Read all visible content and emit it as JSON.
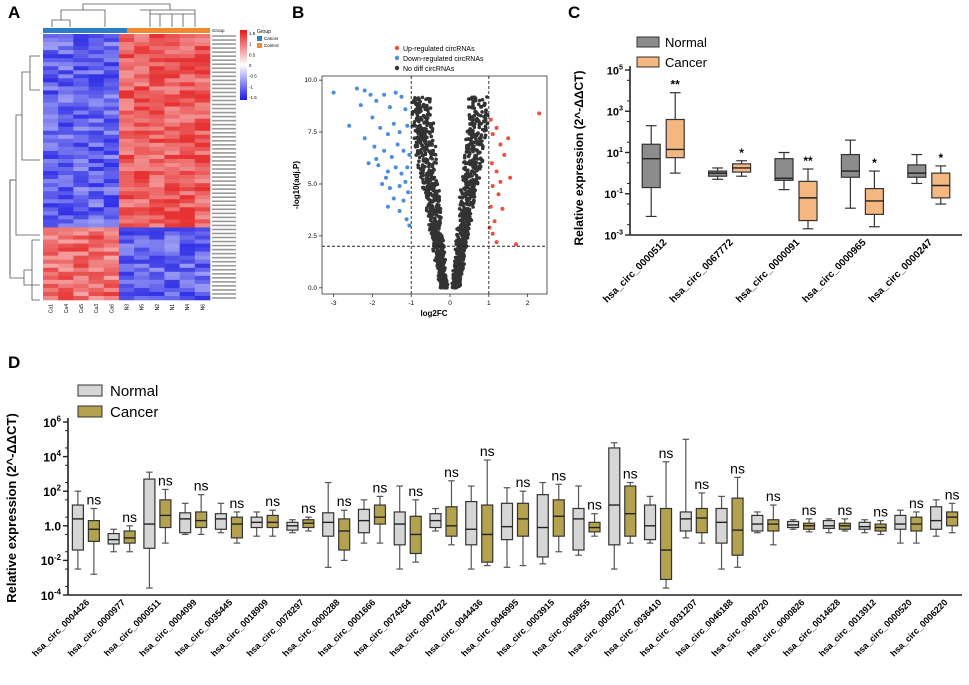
{
  "chart_data": [
    {
      "panel": "A",
      "type": "heatmap",
      "legend": {
        "title": "Group",
        "entries": [
          "Cancer",
          "Control"
        ]
      },
      "color_scale": {
        "ticks": [
          "1.5",
          "1",
          "0.5",
          "0",
          "-0.5",
          "-1",
          "-1.5"
        ],
        "low": "#1a1ae6",
        "mid": "#ffffff",
        "high": "#e61a1a"
      },
      "group_bar_label": "Group",
      "columns": [
        "Ca1",
        "Ca4",
        "Ca5",
        "Ca3",
        "Ca6",
        "N3",
        "N5",
        "N2",
        "N1",
        "N4",
        "N6"
      ],
      "column_groups": [
        "Cancer",
        "Cancer",
        "Cancer",
        "Cancer",
        "Cancer",
        "Control",
        "Control",
        "Control",
        "Control",
        "Control",
        "Control"
      ],
      "rows_top_block": 48,
      "rows_bottom_block": 18
    },
    {
      "panel": "B",
      "type": "scatter",
      "xlabel": "log2FC",
      "ylabel": "-log10(adj.P)",
      "xlim": [
        -3.3,
        2.5
      ],
      "ylim": [
        -0.3,
        10.2
      ],
      "xticks": [
        "-3",
        "-2",
        "-1",
        "0",
        "1",
        "2"
      ],
      "yticks": [
        "0.0",
        "2.5",
        "5.0",
        "7.5",
        "10.0"
      ],
      "thresholds": {
        "x": [
          -1,
          1
        ],
        "y": 2.0
      },
      "legend": [
        "Up-regulated circRNAs",
        "Down-regulated circRNAs",
        "No diff circRNAs"
      ],
      "colors": {
        "up": "#e8543e",
        "down": "#4a8ede",
        "nodiff": "#333333"
      },
      "up_points": [
        [
          1.05,
          8.1
        ],
        [
          1.1,
          7.4
        ],
        [
          1.2,
          7.7
        ],
        [
          1.3,
          6.9
        ],
        [
          1.08,
          6.0
        ],
        [
          1.2,
          5.6
        ],
        [
          1.4,
          6.4
        ],
        [
          1.5,
          7.2
        ],
        [
          1.1,
          4.9
        ],
        [
          1.25,
          4.5
        ],
        [
          1.05,
          3.9
        ],
        [
          1.15,
          3.2
        ],
        [
          1.35,
          3.8
        ],
        [
          1.55,
          5.3
        ],
        [
          1.1,
          2.6
        ],
        [
          1.2,
          2.2
        ],
        [
          2.3,
          8.4
        ],
        [
          1.7,
          2.1
        ],
        [
          1.02,
          2.9
        ],
        [
          1.3,
          5.1
        ]
      ],
      "down_points": [
        [
          -3.0,
          9.4
        ],
        [
          -2.4,
          9.6
        ],
        [
          -2.2,
          9.5
        ],
        [
          -2.05,
          9.3
        ],
        [
          -2.3,
          8.8
        ],
        [
          -1.9,
          9.0
        ],
        [
          -1.7,
          9.3
        ],
        [
          -1.55,
          8.7
        ],
        [
          -1.4,
          9.4
        ],
        [
          -1.25,
          9.2
        ],
        [
          -1.15,
          8.6
        ],
        [
          -2.6,
          7.8
        ],
        [
          -2.0,
          8.2
        ],
        [
          -1.8,
          7.7
        ],
        [
          -1.6,
          7.4
        ],
        [
          -1.45,
          7.9
        ],
        [
          -1.3,
          7.5
        ],
        [
          -1.1,
          7.8
        ],
        [
          -2.2,
          7.2
        ],
        [
          -1.95,
          6.8
        ],
        [
          -1.7,
          6.6
        ],
        [
          -1.5,
          6.3
        ],
        [
          -1.35,
          6.9
        ],
        [
          -1.2,
          6.6
        ],
        [
          -1.05,
          6.4
        ],
        [
          -1.85,
          5.9
        ],
        [
          -1.6,
          5.6
        ],
        [
          -1.4,
          5.8
        ],
        [
          -1.25,
          5.5
        ],
        [
          -1.1,
          5.8
        ],
        [
          -1.75,
          5.0
        ],
        [
          -1.55,
          4.8
        ],
        [
          -1.3,
          4.9
        ],
        [
          -1.15,
          5.1
        ],
        [
          -1.45,
          4.3
        ],
        [
          -1.2,
          4.2
        ],
        [
          -1.08,
          4.6
        ],
        [
          -1.3,
          3.7
        ],
        [
          -1.12,
          3.3
        ],
        [
          -1.05,
          3.0
        ],
        [
          -1.6,
          3.9
        ],
        [
          -1.9,
          6.2
        ],
        [
          -2.1,
          6.0
        ],
        [
          -1.65,
          5.3
        ]
      ]
    },
    {
      "panel": "C",
      "type": "box",
      "ylabel": "Relative expression  (2^-ΔΔCT)",
      "yscale": "log10",
      "ylim_log10": [
        -3,
        5
      ],
      "yticks": [
        {
          "base": "10",
          "exp": "5",
          "v": 5
        },
        {
          "base": "10",
          "exp": "3",
          "v": 3
        },
        {
          "base": "10",
          "exp": "1",
          "v": 1
        },
        {
          "base": "10",
          "exp": "-1",
          "v": -1
        },
        {
          "base": "10",
          "exp": "-3",
          "v": -3
        }
      ],
      "legend": [
        "Normal",
        "Cancer"
      ],
      "colors": {
        "Normal": "#8c8c8c",
        "Cancer": "#f4b77f"
      },
      "categories": [
        "hsa_circ_0000512",
        "hsa_circ_0067772",
        "hsa_circ_0000091",
        "hsa_circ_0000965",
        "hsa_circ_0000247"
      ],
      "significance": [
        "**",
        "*",
        "**",
        "*",
        "*"
      ],
      "series": [
        {
          "name": "Normal",
          "boxes": [
            [
              -2.1,
              -0.7,
              0.7,
              1.4,
              2.3
            ],
            [
              -0.3,
              -0.15,
              0.0,
              0.1,
              0.25
            ],
            [
              -0.8,
              -0.35,
              -0.25,
              0.7,
              1.0
            ],
            [
              -1.7,
              -0.2,
              0.1,
              0.9,
              1.6
            ],
            [
              -0.5,
              -0.2,
              0.0,
              0.4,
              0.9
            ]
          ]
        },
        {
          "name": "Cancer",
          "boxes": [
            [
              0.0,
              0.75,
              1.15,
              2.6,
              3.9
            ],
            [
              -0.15,
              0.05,
              0.25,
              0.45,
              0.6
            ],
            [
              -2.7,
              -2.3,
              -1.2,
              -0.4,
              0.2
            ],
            [
              -2.6,
              -2.0,
              -1.35,
              -0.75,
              0.1
            ],
            [
              -1.5,
              -1.2,
              -0.6,
              0.0,
              0.35
            ]
          ]
        }
      ]
    },
    {
      "panel": "D",
      "type": "box",
      "ylabel": "Relative expression  (2^-ΔΔCT)",
      "yscale": "log10",
      "ylim_log10": [
        -4,
        6
      ],
      "yticks": [
        {
          "base": "10",
          "exp": "6",
          "v": 6
        },
        {
          "base": "10",
          "exp": "4",
          "v": 4
        },
        {
          "base": "10",
          "exp": "2",
          "v": 2
        },
        {
          "base": "1.0",
          "exp": "",
          "v": 0
        },
        {
          "base": "10",
          "exp": "-2",
          "v": -2
        },
        {
          "base": "10",
          "exp": "-4",
          "v": -4
        }
      ],
      "legend": [
        "Normal",
        "Cancer"
      ],
      "colors": {
        "Normal": "#d6d6d6",
        "Cancer": "#b5a24e"
      },
      "significance_label": "ns",
      "categories": [
        "hsa_circ_0004426",
        "hsa_circ_0000977",
        "hsa_circ_0000511",
        "hsa_circ_0004099",
        "hsa_circ_0035445",
        "hsa_circ_0018909",
        "hsa_circ_0078297",
        "hsa_circ_0000288",
        "hsa_circ_0001666",
        "hsa_circ_0074264",
        "hsa_circ_0007422",
        "hsa_circ_0044436",
        "hsa_circ_0046995",
        "hsa_circ_0003915",
        "hsa_circ_0059955",
        "hsa_circ_0000277",
        "hsa_circ_0036410",
        "hsa_circ_0031207",
        "hsa_circ_0046188",
        "hsa_circ_0000720",
        "hsa_circ_0000826",
        "hsa_circ_0014628",
        "hsa_circ_0013912",
        "hsa_circ_0000520",
        "hsa_circ_0006220"
      ],
      "series": [
        {
          "name": "Normal",
          "boxes": [
            [
              -2.5,
              -1.4,
              0.4,
              1.2,
              2.0
            ],
            [
              -1.5,
              -1.05,
              -0.8,
              -0.45,
              -0.2
            ],
            [
              -3.6,
              -1.3,
              0.1,
              2.7,
              3.1
            ],
            [
              -0.5,
              -0.4,
              0.4,
              0.75,
              1.3
            ],
            [
              -0.4,
              -0.2,
              0.4,
              0.7,
              1.3
            ],
            [
              -0.6,
              -0.1,
              0.2,
              0.5,
              0.8
            ],
            [
              -0.4,
              -0.25,
              0.0,
              0.2,
              0.35
            ],
            [
              -2.4,
              -0.6,
              0.2,
              0.75,
              2.5
            ],
            [
              -1.0,
              -0.4,
              0.3,
              0.95,
              1.5
            ],
            [
              -2.5,
              -1.1,
              0.1,
              0.8,
              2.3
            ],
            [
              -0.3,
              -0.1,
              0.3,
              0.7,
              1.0
            ],
            [
              -2.5,
              -1.1,
              -0.2,
              1.4,
              2.3
            ],
            [
              -2.4,
              -0.8,
              -0.05,
              1.3,
              2.2
            ],
            [
              -2.2,
              -1.8,
              -0.1,
              1.8,
              2.5
            ],
            [
              -1.7,
              -1.4,
              0.4,
              1.0,
              2.3
            ],
            [
              -2.5,
              -1.1,
              1.2,
              4.5,
              4.8
            ],
            [
              -1.0,
              -0.8,
              0.0,
              1.2,
              1.7
            ],
            [
              -0.7,
              -0.3,
              0.4,
              0.8,
              5.0
            ],
            [
              -2.5,
              -1.0,
              0.2,
              1.0,
              1.7
            ],
            [
              -0.4,
              -0.3,
              0.1,
              0.6,
              0.8
            ],
            [
              -0.2,
              -0.1,
              0.05,
              0.25,
              0.35
            ],
            [
              -0.4,
              -0.15,
              0.0,
              0.3,
              0.4
            ],
            [
              -0.4,
              -0.2,
              -0.05,
              0.2,
              0.35
            ],
            [
              -1.0,
              -0.2,
              0.1,
              0.6,
              0.9
            ],
            [
              -0.6,
              -0.2,
              0.3,
              1.1,
              1.5
            ]
          ]
        },
        {
          "name": "Cancer",
          "boxes": [
            [
              -2.8,
              -0.9,
              -0.2,
              0.3,
              1.0
            ],
            [
              -1.5,
              -1.0,
              -0.7,
              -0.3,
              0.0
            ],
            [
              -1.0,
              -0.1,
              0.6,
              1.5,
              2.1
            ],
            [
              -0.5,
              -0.1,
              0.3,
              0.8,
              1.8
            ],
            [
              -1.0,
              -0.7,
              0.1,
              0.5,
              0.8
            ],
            [
              -0.6,
              -0.1,
              0.2,
              0.6,
              0.9
            ],
            [
              -0.3,
              -0.1,
              0.15,
              0.35,
              0.5
            ],
            [
              -2.0,
              -1.4,
              -0.3,
              0.4,
              0.9
            ],
            [
              -1.0,
              0.1,
              0.5,
              1.2,
              1.7
            ],
            [
              -2.1,
              -1.6,
              -0.5,
              0.55,
              1.5
            ],
            [
              -1.1,
              -0.6,
              0.0,
              1.1,
              2.6
            ],
            [
              -2.3,
              -2.1,
              -0.5,
              1.2,
              3.8
            ],
            [
              -2.3,
              -0.6,
              0.4,
              1.3,
              2.0
            ],
            [
              -1.5,
              -0.6,
              0.55,
              1.5,
              2.4
            ],
            [
              -0.6,
              -0.35,
              -0.1,
              0.2,
              0.7
            ],
            [
              -1.0,
              -0.6,
              0.7,
              2.3,
              2.5
            ],
            [
              -3.6,
              -3.1,
              -1.4,
              1.0,
              3.7
            ],
            [
              -1.0,
              -0.4,
              0.45,
              1.0,
              1.9
            ],
            [
              -2.4,
              -1.7,
              -0.25,
              1.6,
              2.8
            ],
            [
              -1.1,
              -0.3,
              0.1,
              0.35,
              1.2
            ],
            [
              -0.35,
              -0.2,
              0.0,
              0.15,
              0.4
            ],
            [
              -0.3,
              -0.2,
              0.0,
              0.15,
              0.4
            ],
            [
              -0.5,
              -0.3,
              -0.1,
              0.1,
              0.3
            ],
            [
              -1.0,
              -0.3,
              0.1,
              0.5,
              0.8
            ],
            [
              -0.4,
              0.0,
              0.5,
              0.8,
              1.3
            ]
          ]
        }
      ]
    }
  ],
  "panel_letters": [
    "A",
    "B",
    "C",
    "D"
  ]
}
